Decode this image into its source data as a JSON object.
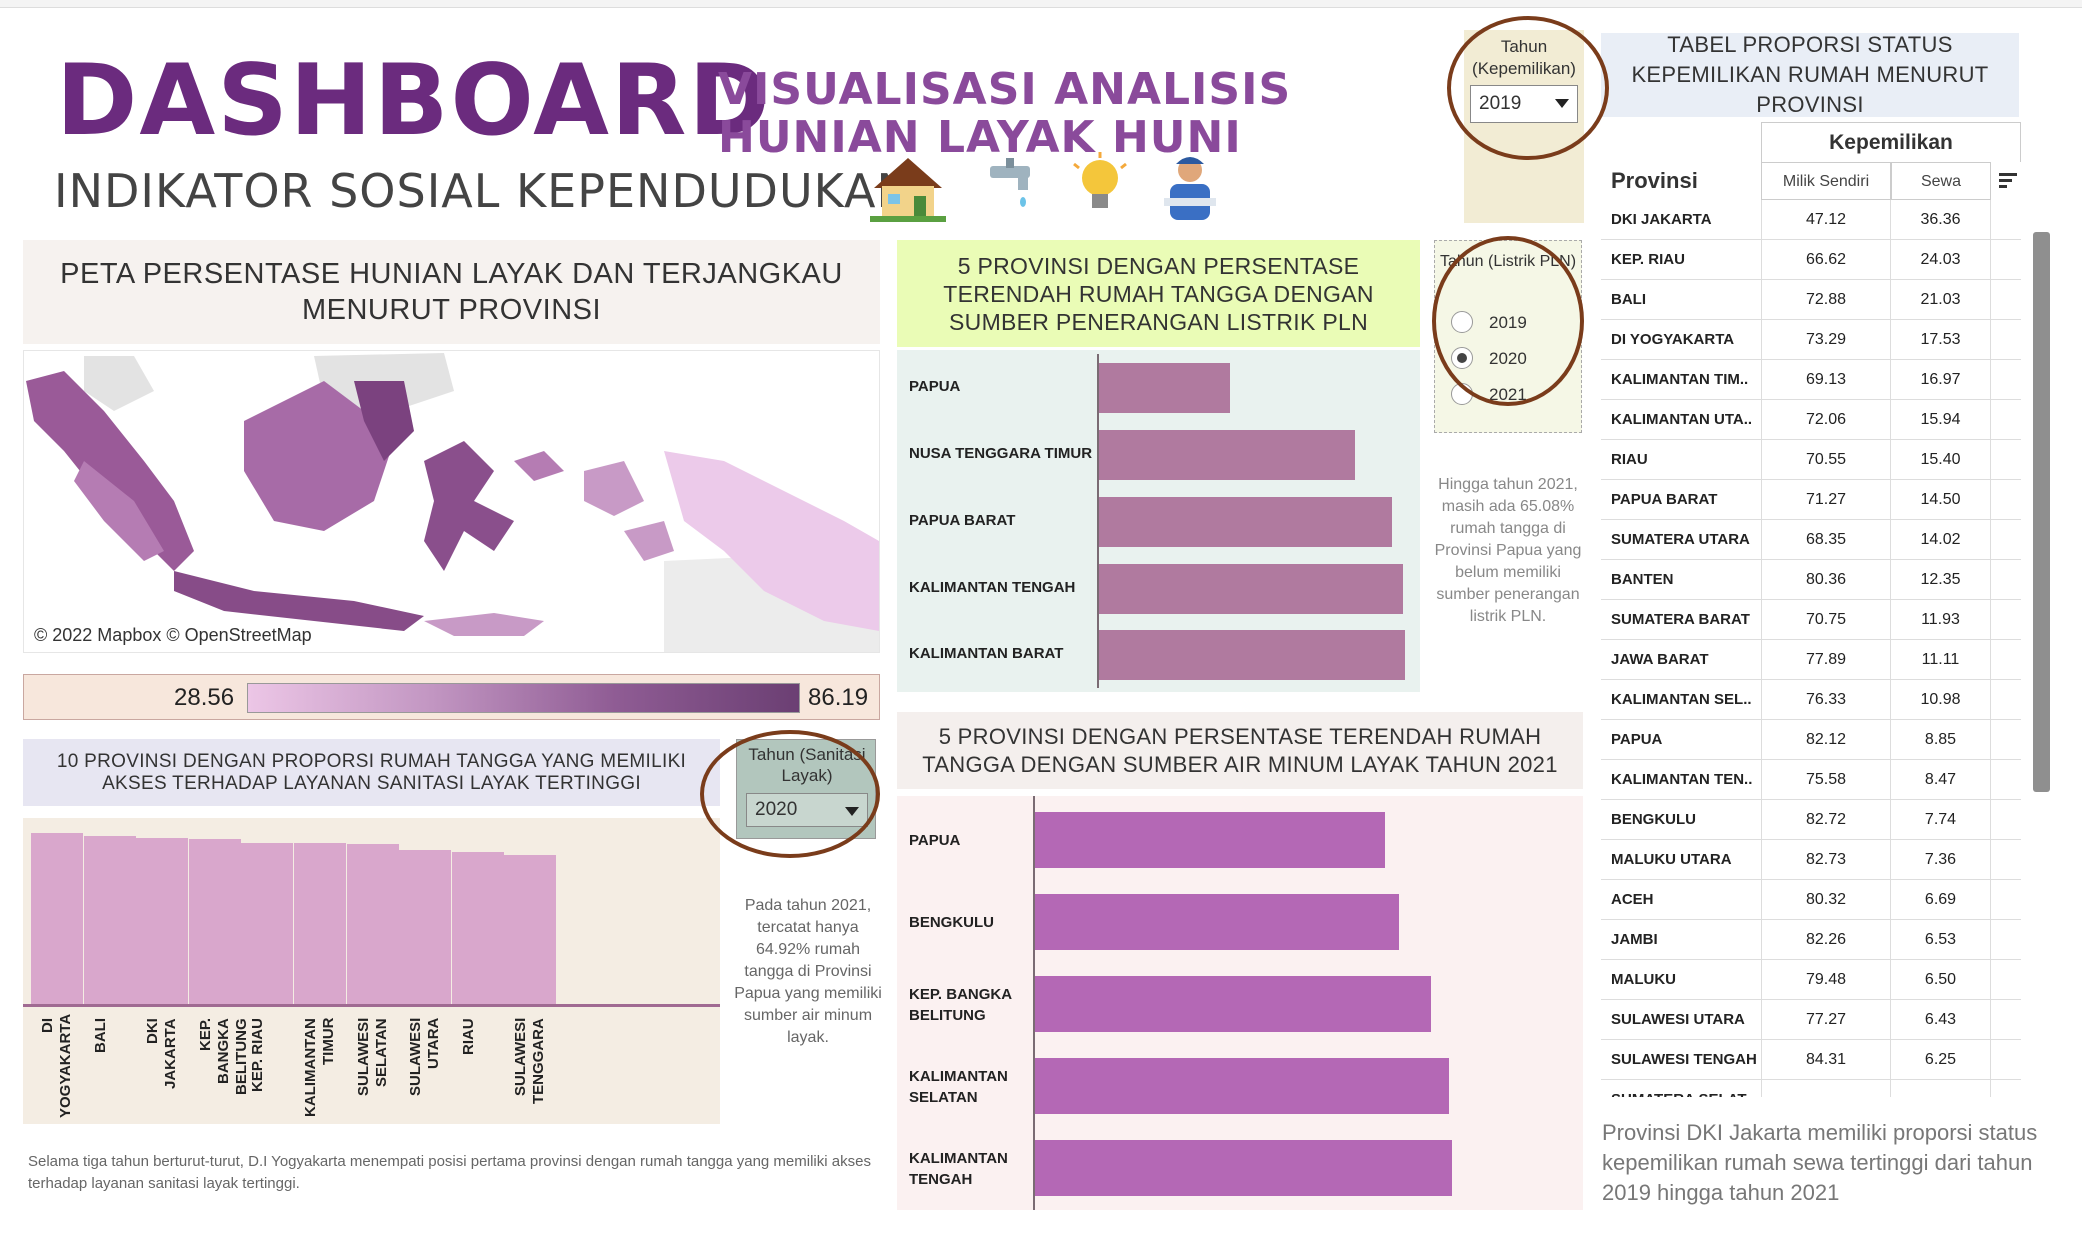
{
  "header": {
    "title": "DASHBOARD",
    "subtitle_line1": "VISUALISASI ANALISIS",
    "subtitle_line2": "HUNIAN LAYAK HUNI",
    "tagline": "INDIKATOR SOSIAL KEPENDUDUKAN",
    "icons": [
      "house-icon",
      "faucet-icon",
      "lightbulb-icon",
      "worker-icon"
    ]
  },
  "map_panel": {
    "title": "PETA PERSENTASE HUNIAN LAYAK DAN TERJANGKAU MENURUT PROVINSI",
    "credit": "© 2022 Mapbox © OpenStreetMap",
    "legend_min": "28.56",
    "legend_max": "86.19"
  },
  "filters": {
    "kepemilikan": {
      "label": "Tahun (Kepemilikan)",
      "selected": "2019"
    },
    "listrik": {
      "label": "Tahun (Listrik PLN)",
      "options": [
        "2019",
        "2020",
        "2021"
      ],
      "selected": "2020"
    },
    "sanitasi": {
      "label": "Tahun (Sanitasi Layak)",
      "selected": "2020"
    }
  },
  "chart_data": [
    {
      "id": "sanitasi",
      "type": "bar",
      "title": "10 PROVINSI DENGAN PROPORSI RUMAH TANGGA YANG MEMILIKI AKSES TERHADAP LAYANAN SANITASI LAYAK TERTINGGI",
      "categories": [
        "DI YOGYAKARTA",
        "BALI",
        "DKI JAKARTA",
        "KEP. BANGKA BELITUNG",
        "KEP. RIAU",
        "KALIMANTAN TIMUR",
        "SULAWESI SELATAN",
        "SULAWESI UTARA",
        "RIAU",
        "SULAWESI TENGGARA"
      ],
      "values": [
        95.0,
        93.5,
        92.5,
        91.5,
        89.5,
        89.2,
        88.9,
        85.5,
        84.2,
        82.8
      ],
      "ylim": [
        0,
        100
      ],
      "color": "#d9a7cc"
    },
    {
      "id": "listrik",
      "type": "bar",
      "orientation": "horizontal",
      "title": "5 PROVINSI DENGAN PERSENTASE TERENDAH RUMAH TANGGA DENGAN SUMBER PENERANGAN LISTRIK PLN",
      "categories": [
        "PAPUA",
        "NUSA TENGGARA TIMUR",
        "PAPUA BARAT",
        "KALIMANTAN TENGAH",
        "KALIMANTAN BARAT"
      ],
      "values": [
        36.5,
        71.2,
        81.5,
        84.5,
        85.0
      ],
      "xlim": [
        0,
        100
      ],
      "color": "#b07a9f"
    },
    {
      "id": "air",
      "type": "bar",
      "orientation": "horizontal",
      "title": "5 PROVINSI DENGAN PERSENTASE TERENDAH RUMAH TANGGA DENGAN SUMBER AIR MINUM LAYAK TAHUN 2021",
      "categories": [
        "PAPUA",
        "BENGKULU",
        "KEP. BANGKA BELITUNG",
        "KALIMANTAN SELATAN",
        "KALIMANTAN TENGAH"
      ],
      "values": [
        64.9,
        67.4,
        73.3,
        76.6,
        77.2
      ],
      "xlim": [
        0,
        100
      ],
      "color": "#b468b5"
    },
    {
      "id": "kepemilikan",
      "type": "table",
      "title": "TABEL PROPORSI STATUS KEPEMILIKAN RUMAH MENURUT PROVINSI",
      "group_header": "Kepemilikan",
      "columns": [
        "Provinsi",
        "Milik Sendiri",
        "Sewa"
      ],
      "rows": [
        [
          "DKI JAKARTA",
          "47.12",
          "36.36"
        ],
        [
          "KEP. RIAU",
          "66.62",
          "24.03"
        ],
        [
          "BALI",
          "72.88",
          "21.03"
        ],
        [
          "DI YOGYAKARTA",
          "73.29",
          "17.53"
        ],
        [
          "KALIMANTAN TIM..",
          "69.13",
          "16.97"
        ],
        [
          "KALIMANTAN UTA..",
          "72.06",
          "15.94"
        ],
        [
          "RIAU",
          "70.55",
          "15.40"
        ],
        [
          "PAPUA BARAT",
          "71.27",
          "14.50"
        ],
        [
          "SUMATERA UTARA",
          "68.35",
          "14.02"
        ],
        [
          "BANTEN",
          "80.36",
          "12.35"
        ],
        [
          "SUMATERA BARAT",
          "70.75",
          "11.93"
        ],
        [
          "JAWA BARAT",
          "77.89",
          "11.11"
        ],
        [
          "KALIMANTAN SEL..",
          "76.33",
          "10.98"
        ],
        [
          "PAPUA",
          "82.12",
          "8.85"
        ],
        [
          "KALIMANTAN TEN..",
          "75.58",
          "8.47"
        ],
        [
          "BENGKULU",
          "82.72",
          "7.74"
        ],
        [
          "MALUKU UTARA",
          "82.73",
          "7.36"
        ],
        [
          "ACEH",
          "80.32",
          "6.69"
        ],
        [
          "JAMBI",
          "82.26",
          "6.53"
        ],
        [
          "MALUKU",
          "79.48",
          "6.50"
        ],
        [
          "SULAWESI UTARA",
          "77.27",
          "6.43"
        ],
        [
          "SULAWESI TENGAH",
          "84.31",
          "6.25"
        ],
        [
          "SUMATERA SELAT..",
          "",
          ""
        ]
      ]
    }
  ],
  "notes": {
    "pln": "Hingga tahun 2021, masih ada 65.08% rumah tangga di Provinsi Papua yang belum memiliki sumber penerangan listrik PLN.",
    "sanitasi_side": "Pada tahun 2021, tercatat hanya 64.92% rumah tangga di Provinsi Papua yang memiliki sumber air minum layak.",
    "sanitasi_bottom": "Selama tiga tahun berturut-turut, D.I Yogyakarta menempati posisi pertama provinsi dengan rumah tangga yang memiliki akses terhadap layanan sanitasi layak tertinggi.",
    "table": "Provinsi DKI Jakarta memiliki proporsi status kepemilikan rumah sewa tertinggi dari tahun 2019 hingga tahun 2021"
  },
  "colors": {
    "brand_purple": "#6b2b7e",
    "annotation_brown": "#7a3c1b"
  }
}
